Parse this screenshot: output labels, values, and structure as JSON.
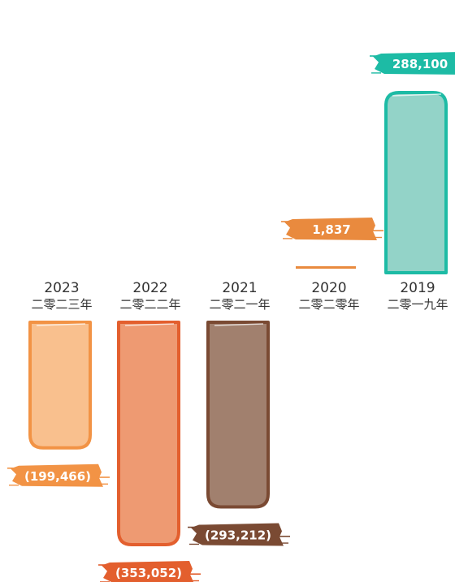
{
  "chart_data": {
    "type": "bar",
    "title": "",
    "xlabel": "",
    "ylabel": "",
    "categories": [
      "2023",
      "2022",
      "2021",
      "2020",
      "2019"
    ],
    "categories_chinese": [
      "二零二三年",
      "二零二二年",
      "二零二一年",
      "二零二零年",
      "二零一九年"
    ],
    "values": [
      -199466,
      -353052,
      -293212,
      1837,
      288100
    ],
    "value_labels": [
      "(199,466)",
      "(353,052)",
      "(293,212)",
      "1,837",
      "288,100"
    ],
    "ylim": [
      -400000,
      300000
    ],
    "grid": false,
    "legend": "none"
  },
  "colors": {
    "bar_fill": [
      "#F9C08E",
      "#EE9A72",
      "#A1806E",
      "#F3B289",
      "#93D3C8"
    ],
    "bar_outline": [
      "#F29345",
      "#E35F2E",
      "#7A4A33",
      "#E98A3E",
      "#1DBBA5"
    ],
    "label_background": [
      "#F29345",
      "#E35F2E",
      "#7A4A33",
      "#E98A3E",
      "#1DBBA5"
    ]
  }
}
